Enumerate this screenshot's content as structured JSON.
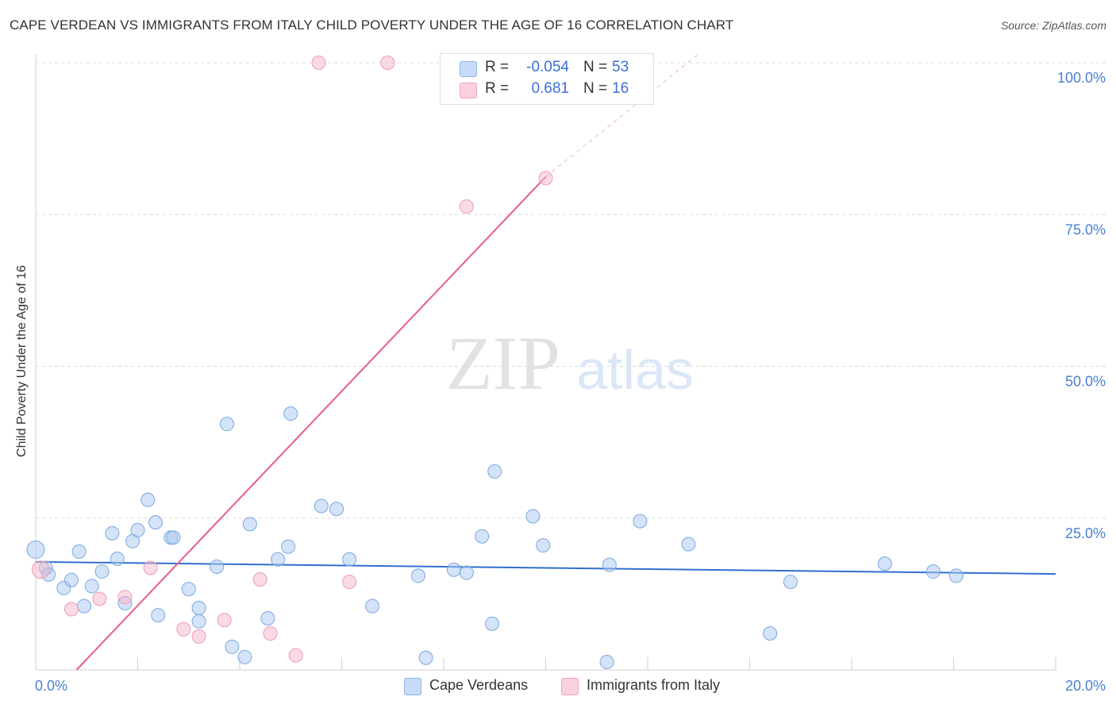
{
  "title": "CAPE VERDEAN VS IMMIGRANTS FROM ITALY CHILD POVERTY UNDER THE AGE OF 16 CORRELATION CHART",
  "source": "Source: ZipAtlas.com",
  "watermark": {
    "zip": "ZIP",
    "atlas": "atlas"
  },
  "stats": [
    {
      "series": "Cape Verdeans",
      "r_label": "R =",
      "r_value": "-0.054",
      "n_label": "N =",
      "n_value": "53",
      "color": "#a9c8f0"
    },
    {
      "series": "Immigrants from Italy",
      "r_label": "R =",
      "r_value": " 0.681",
      "n_label": "N =",
      "n_value": "16",
      "color": "#f5b8c9"
    }
  ],
  "legend": [
    {
      "label": "Cape Verdeans",
      "color": "#a9c8f0"
    },
    {
      "label": "Immigrants from Italy",
      "color": "#f5b8c9"
    }
  ],
  "chart_data": {
    "type": "scatter",
    "title": "CAPE VERDEAN VS IMMIGRANTS FROM ITALY CHILD POVERTY UNDER THE AGE OF 16 CORRELATION CHART",
    "xlabel": "",
    "ylabel": "Child Poverty Under the Age of 16",
    "xlim": [
      0,
      20
    ],
    "ylim": [
      0,
      100
    ],
    "x_tick_labels": [
      "0.0%",
      "20.0%"
    ],
    "y_tick_labels": [
      "100.0%",
      "75.0%",
      "50.0%",
      "25.0%"
    ],
    "y_ticks": [
      100,
      75,
      50,
      25
    ],
    "x_minor_ticks": [
      2,
      4,
      6,
      8,
      10,
      12,
      14,
      16,
      18,
      20
    ],
    "grid": true,
    "legend_position": "bottom-center",
    "series": [
      {
        "name": "Cape Verdeans",
        "color": "#a9c8f0",
        "stroke": "#7aa8e0",
        "trend_color": "#2f6fd0",
        "trend": {
          "x": [
            0,
            20
          ],
          "y": [
            17.8,
            15.8
          ]
        },
        "points": [
          [
            0.0,
            19.8
          ],
          [
            0.2,
            16.8
          ],
          [
            0.25,
            15.7
          ],
          [
            0.55,
            13.5
          ],
          [
            0.7,
            14.8
          ],
          [
            0.85,
            19.5
          ],
          [
            0.95,
            10.5
          ],
          [
            1.1,
            13.8
          ],
          [
            1.3,
            16.2
          ],
          [
            1.5,
            22.5
          ],
          [
            1.6,
            18.3
          ],
          [
            1.75,
            11.0
          ],
          [
            1.9,
            21.2
          ],
          [
            2.0,
            23.0
          ],
          [
            2.2,
            28.0
          ],
          [
            2.35,
            24.3
          ],
          [
            2.4,
            9.0
          ],
          [
            2.65,
            21.8
          ],
          [
            2.7,
            21.8
          ],
          [
            3.0,
            13.3
          ],
          [
            3.2,
            10.2
          ],
          [
            3.2,
            8.0
          ],
          [
            3.55,
            17.0
          ],
          [
            3.75,
            40.5
          ],
          [
            3.85,
            3.8
          ],
          [
            4.1,
            2.1
          ],
          [
            4.2,
            24.0
          ],
          [
            4.55,
            8.5
          ],
          [
            4.75,
            18.2
          ],
          [
            4.95,
            20.3
          ],
          [
            5.0,
            42.2
          ],
          [
            5.6,
            27.0
          ],
          [
            5.9,
            26.5
          ],
          [
            6.15,
            18.2
          ],
          [
            6.6,
            10.5
          ],
          [
            7.5,
            15.5
          ],
          [
            7.65,
            2.0
          ],
          [
            8.2,
            16.5
          ],
          [
            8.45,
            16.0
          ],
          [
            8.75,
            22.0
          ],
          [
            8.95,
            7.6
          ],
          [
            9.0,
            32.7
          ],
          [
            9.75,
            25.3
          ],
          [
            9.95,
            20.5
          ],
          [
            11.2,
            1.3
          ],
          [
            11.25,
            17.3
          ],
          [
            11.85,
            24.5
          ],
          [
            12.8,
            20.7
          ],
          [
            14.4,
            6.0
          ],
          [
            14.8,
            14.5
          ],
          [
            16.65,
            17.5
          ],
          [
            17.6,
            16.2
          ],
          [
            18.05,
            15.5
          ]
        ]
      },
      {
        "name": "Immigrants from Italy",
        "color": "#f5b8c9",
        "stroke": "#ee9bb4",
        "trend_color": "#e75d86",
        "trend": {
          "x": [
            0.8,
            10.0
          ],
          "y": [
            0,
            81.2
          ]
        },
        "trend_extension": {
          "x": [
            10.0,
            13.0
          ],
          "y": [
            81.2,
            110
          ]
        },
        "points": [
          [
            0.1,
            16.5
          ],
          [
            0.7,
            10.0
          ],
          [
            1.25,
            11.7
          ],
          [
            1.75,
            12.0
          ],
          [
            2.25,
            16.8
          ],
          [
            2.9,
            6.7
          ],
          [
            3.2,
            5.5
          ],
          [
            3.7,
            8.2
          ],
          [
            4.4,
            14.9
          ],
          [
            4.6,
            6.0
          ],
          [
            5.1,
            2.4
          ],
          [
            6.15,
            14.5
          ],
          [
            5.55,
            100.0
          ],
          [
            6.9,
            100.0
          ],
          [
            8.45,
            76.3
          ],
          [
            10.0,
            81.0
          ]
        ]
      }
    ]
  }
}
